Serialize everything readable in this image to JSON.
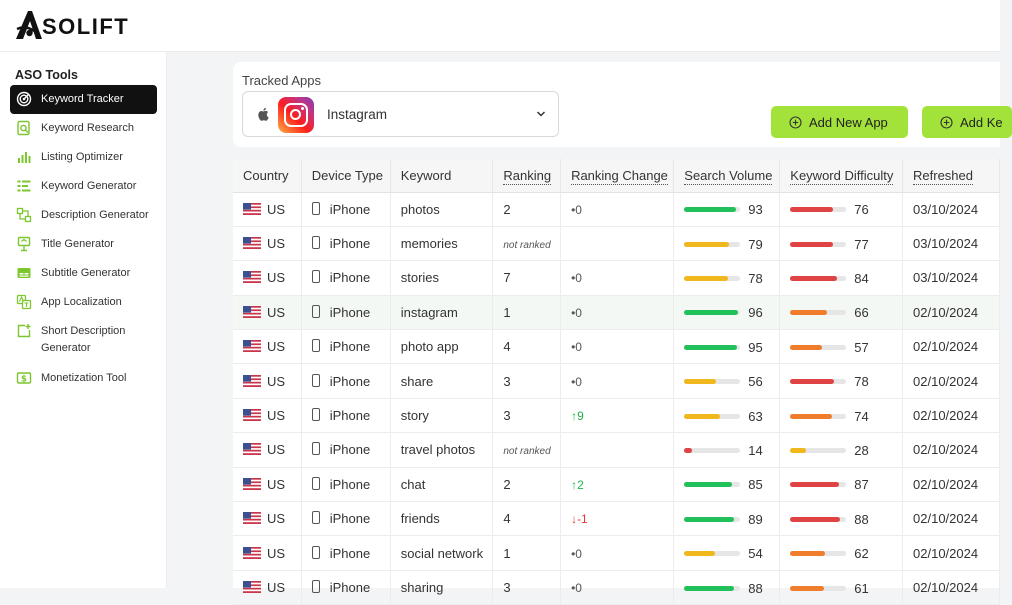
{
  "brand": {
    "logo_text": "SOLIFT",
    "logo_letter": "A"
  },
  "sidebar": {
    "title": "ASO Tools",
    "items": [
      {
        "label": "Keyword Tracker",
        "icon": "target-icon",
        "active": true
      },
      {
        "label": "Keyword Research",
        "icon": "search-doc-icon"
      },
      {
        "label": "Listing Optimizer",
        "icon": "bar-chart-icon"
      },
      {
        "label": "Keyword Generator",
        "icon": "list-icon"
      },
      {
        "label": "Description Generator",
        "icon": "flowchart-icon"
      },
      {
        "label": "Title Generator",
        "icon": "upload-icon"
      },
      {
        "label": "Subtitle Generator",
        "icon": "subtitle-icon"
      },
      {
        "label": "App Localization",
        "icon": "translate-icon"
      },
      {
        "label": "Short Description Generator",
        "icon": "add-box-icon"
      },
      {
        "label": "Monetization Tool",
        "icon": "dollar-icon"
      }
    ]
  },
  "tracked_apps": {
    "label": "Tracked Apps",
    "selected_app": "Instagram",
    "platform_icon": "apple-icon"
  },
  "buttons": {
    "add_new_app": "Add New App",
    "add_keyword": "Add Ke"
  },
  "colors": {
    "accent": "#a3e23a",
    "green": "#22c05a",
    "yellow": "#f0b81c",
    "orange": "#ef7d2b",
    "red": "#e04343",
    "up": "#22b24c",
    "down": "#e03a3a"
  },
  "table": {
    "headers": [
      "Country",
      "Device Type",
      "Keyword",
      "Ranking",
      "Ranking Change",
      "Search Volume",
      "Keyword Difficulty",
      "Refreshed"
    ],
    "rows": [
      {
        "country": "US",
        "device": "iPhone",
        "keyword": "photos",
        "ranking": "2",
        "change": "•0",
        "change_dir": "none",
        "volume": 93,
        "volume_color": "green",
        "difficulty": 76,
        "difficulty_color": "red",
        "refreshed": "03/10/2024"
      },
      {
        "country": "US",
        "device": "iPhone",
        "keyword": "memories",
        "ranking": "not ranked",
        "change": "",
        "change_dir": "none",
        "volume": 79,
        "volume_color": "yellow",
        "difficulty": 77,
        "difficulty_color": "red",
        "refreshed": "03/10/2024"
      },
      {
        "country": "US",
        "device": "iPhone",
        "keyword": "stories",
        "ranking": "7",
        "change": "•0",
        "change_dir": "none",
        "volume": 78,
        "volume_color": "yellow",
        "difficulty": 84,
        "difficulty_color": "red",
        "refreshed": "03/10/2024"
      },
      {
        "country": "US",
        "device": "iPhone",
        "keyword": "instagram",
        "ranking": "1",
        "change": "•0",
        "change_dir": "none",
        "volume": 96,
        "volume_color": "green",
        "difficulty": 66,
        "difficulty_color": "orange",
        "refreshed": "02/10/2024"
      },
      {
        "country": "US",
        "device": "iPhone",
        "keyword": "photo app",
        "ranking": "4",
        "change": "•0",
        "change_dir": "none",
        "volume": 95,
        "volume_color": "green",
        "difficulty": 57,
        "difficulty_color": "orange",
        "refreshed": "02/10/2024"
      },
      {
        "country": "US",
        "device": "iPhone",
        "keyword": "share",
        "ranking": "3",
        "change": "•0",
        "change_dir": "none",
        "volume": 56,
        "volume_color": "yellow",
        "difficulty": 78,
        "difficulty_color": "red",
        "refreshed": "02/10/2024"
      },
      {
        "country": "US",
        "device": "iPhone",
        "keyword": "story",
        "ranking": "3",
        "change": "↑9",
        "change_dir": "up",
        "volume": 63,
        "volume_color": "yellow",
        "difficulty": 74,
        "difficulty_color": "orange",
        "refreshed": "02/10/2024"
      },
      {
        "country": "US",
        "device": "iPhone",
        "keyword": "travel photos",
        "ranking": "not ranked",
        "change": "",
        "change_dir": "none",
        "volume": 14,
        "volume_color": "red",
        "difficulty": 28,
        "difficulty_color": "yellow",
        "refreshed": "02/10/2024"
      },
      {
        "country": "US",
        "device": "iPhone",
        "keyword": "chat",
        "ranking": "2",
        "change": "↑2",
        "change_dir": "up",
        "volume": 85,
        "volume_color": "green",
        "difficulty": 87,
        "difficulty_color": "red",
        "refreshed": "02/10/2024"
      },
      {
        "country": "US",
        "device": "iPhone",
        "keyword": "friends",
        "ranking": "4",
        "change": "↓-1",
        "change_dir": "down",
        "volume": 89,
        "volume_color": "green",
        "difficulty": 88,
        "difficulty_color": "red",
        "refreshed": "02/10/2024"
      },
      {
        "country": "US",
        "device": "iPhone",
        "keyword": "social network",
        "ranking": "1",
        "change": "•0",
        "change_dir": "none",
        "volume": 54,
        "volume_color": "yellow",
        "difficulty": 62,
        "difficulty_color": "orange",
        "refreshed": "02/10/2024"
      },
      {
        "country": "US",
        "device": "iPhone",
        "keyword": "sharing",
        "ranking": "3",
        "change": "•0",
        "change_dir": "none",
        "volume": 88,
        "volume_color": "green",
        "difficulty": 61,
        "difficulty_color": "orange",
        "refreshed": "02/10/2024"
      }
    ]
  }
}
